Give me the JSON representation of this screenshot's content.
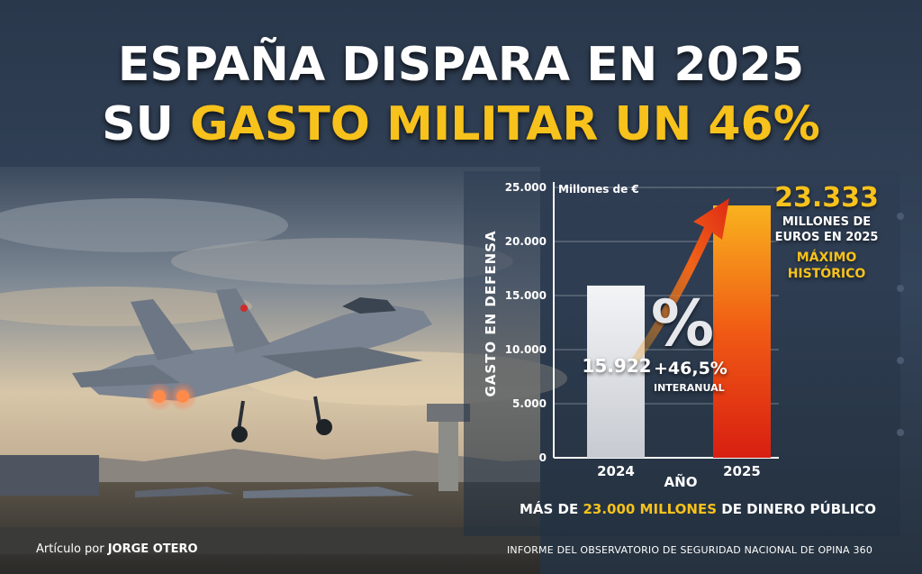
{
  "headline": {
    "line1": "ESPAÑA DISPARA EN 2025",
    "line2_prefix": "SU ",
    "line2_highlight": "GASTO MILITAR UN 46%"
  },
  "chart_data": {
    "type": "bar",
    "unit_label": "Millones de €",
    "ylabel": "GASTO EN DEFENSA",
    "xlabel": "AÑO",
    "ylim": [
      0,
      25000
    ],
    "yticks": [
      0,
      5000,
      10000,
      15000,
      20000,
      25000
    ],
    "ytick_labels": [
      "0",
      "5.000",
      "10.000",
      "15.000",
      "20.000",
      "25.000"
    ],
    "categories": [
      "2024",
      "2025"
    ],
    "values": [
      15922,
      23333
    ],
    "value_labels": [
      "15.922",
      "23.333"
    ],
    "annotations": {
      "value_2025_sub": "MILLONES DE EUROS EN 2025",
      "record_label": "MÁXIMO HISTÓRICO",
      "change": "+46,5%",
      "change_label": "INTERANUAL",
      "percent_sign": "%"
    }
  },
  "footer": {
    "summary_prefix": "MÁS DE ",
    "summary_highlight": "23.000 MILLONES",
    "summary_suffix": " DE DINERO PÚBLICO",
    "credit_prefix": "Artículo por ",
    "credit_author": "JORGE OTERO",
    "source": "INFORME DEL OBSERVATORIO DE SEGURIDAD NACIONAL DE OPINA 360"
  },
  "colors": {
    "accent_yellow": "#f7c21c",
    "bar_2024": "#e9ebee",
    "bar_2025_top": "#f9b21e",
    "bar_2025_bottom": "#d81f12",
    "background": "#2d3b4f"
  }
}
